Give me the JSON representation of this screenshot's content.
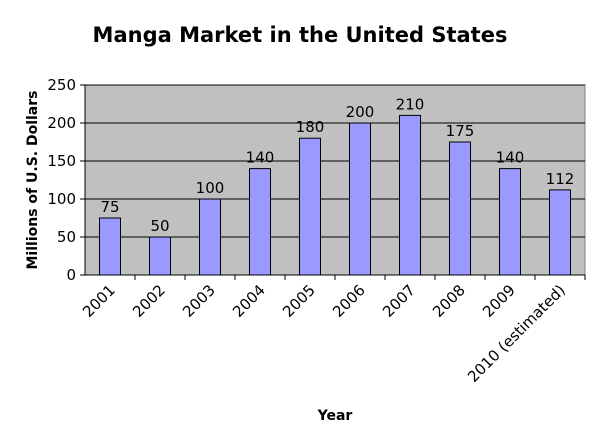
{
  "chart_data": {
    "type": "bar",
    "title": "Manga Market in the United States",
    "xlabel": "Year",
    "ylabel": "Millions of U.S. Dollars",
    "categories": [
      "2001",
      "2002",
      "2003",
      "2004",
      "2005",
      "2006",
      "2007",
      "2008",
      "2009",
      "2010 (estimated)"
    ],
    "values": [
      75,
      50,
      100,
      140,
      180,
      200,
      210,
      175,
      140,
      112
    ],
    "ylim": [
      0,
      250
    ],
    "yticks": [
      0,
      50,
      100,
      150,
      200,
      250
    ],
    "grid": true,
    "legend": "none",
    "colors": {
      "bar_fill": "#9999ff",
      "bar_stroke": "#000000",
      "plot_bg": "#c0c0c0",
      "gridline": "#000000",
      "text": "#000000"
    }
  }
}
